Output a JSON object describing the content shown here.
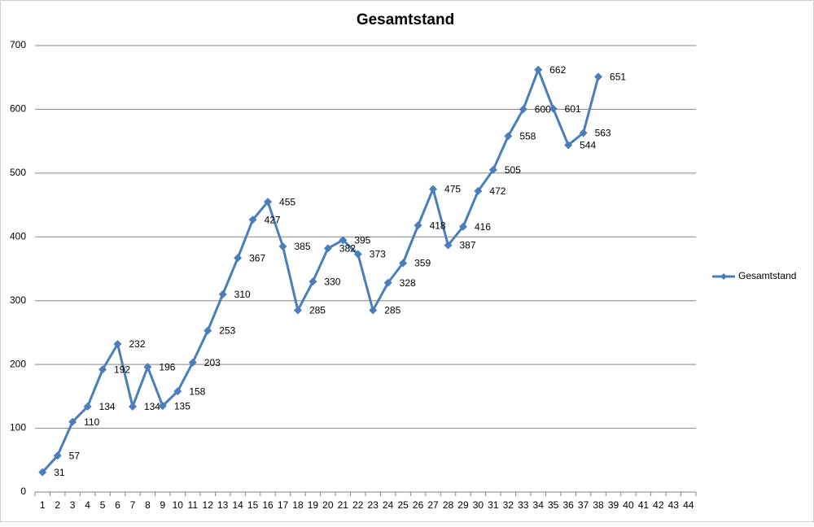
{
  "chart_data": {
    "type": "line",
    "title": "Gesamtstand",
    "categories": [
      1,
      2,
      3,
      4,
      5,
      6,
      7,
      8,
      9,
      10,
      11,
      12,
      13,
      14,
      15,
      16,
      17,
      18,
      19,
      20,
      21,
      22,
      23,
      24,
      25,
      26,
      27,
      28,
      29,
      30,
      31,
      32,
      33,
      34,
      35,
      36,
      37,
      38,
      39,
      40,
      41,
      42,
      43,
      44
    ],
    "series": [
      {
        "name": "Gesamtstand",
        "color": "#4a7ebb",
        "values": [
          31,
          57,
          110,
          134,
          192,
          232,
          134,
          196,
          135,
          158,
          203,
          253,
          310,
          367,
          427,
          455,
          385,
          285,
          330,
          382,
          395,
          373,
          285,
          328,
          359,
          418,
          475,
          387,
          416,
          472,
          505,
          558,
          600,
          662,
          601,
          544,
          563,
          651,
          null,
          null,
          null,
          null,
          null,
          null
        ]
      }
    ],
    "ylim": [
      0,
      700
    ],
    "yticks": [
      0,
      100,
      200,
      300,
      400,
      500,
      600,
      700
    ],
    "grid": true,
    "legend": "right",
    "data_labels": true
  }
}
